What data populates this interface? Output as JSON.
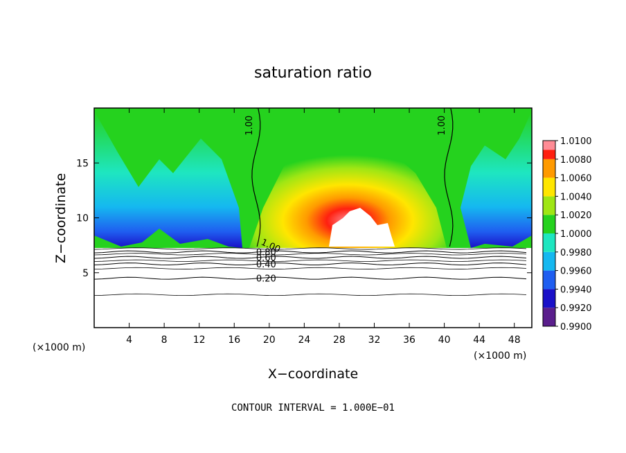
{
  "chart_data": {
    "type": "heatmap",
    "title": "saturation ratio",
    "xlabel": "X−coordinate",
    "ylabel": "Z−coordinate",
    "x_unit_left": "(×1000 m)",
    "x_unit_right": "(×1000 m)",
    "xlim": [
      0,
      50
    ],
    "ylim": [
      0,
      20
    ],
    "x_ticks": [
      4,
      8,
      12,
      16,
      20,
      24,
      28,
      32,
      36,
      40,
      44,
      48
    ],
    "y_ticks": [
      5,
      10,
      15
    ],
    "footer": "CONTOUR INTERVAL = 1.000E−01",
    "colorbar": {
      "levels": [
        0.99,
        0.992,
        0.994,
        0.996,
        0.998,
        1.0,
        1.002,
        1.004,
        1.006,
        1.008,
        1.01
      ],
      "tick_labels": [
        "0.9900",
        "0.9920",
        "0.9940",
        "0.9960",
        "0.9980",
        "1.0000",
        "1.0020",
        "1.0040",
        "1.0060",
        "1.0080",
        "1.0100"
      ],
      "colors": [
        "#5a1e8c",
        "#1a10c8",
        "#1f5ef0",
        "#15b8f0",
        "#1ee6c0",
        "#25d21e",
        "#9fe614",
        "#ffe600",
        "#ff9a00",
        "#ff2010",
        "#ff8c96"
      ]
    },
    "contour_lines": [
      {
        "label": "1.00",
        "x_at_z15": 18.5
      },
      {
        "label": "1.00",
        "x_at_z15": 40.5
      },
      {
        "label": "0.80",
        "z": 6.9
      },
      {
        "label": "0.60",
        "z": 6.4
      },
      {
        "label": "0.40",
        "z": 5.8
      },
      {
        "label": "0.20",
        "z": 4.5
      }
    ],
    "contour_label_near_base": "1.00",
    "grid": false,
    "legend": "colorbar right"
  }
}
